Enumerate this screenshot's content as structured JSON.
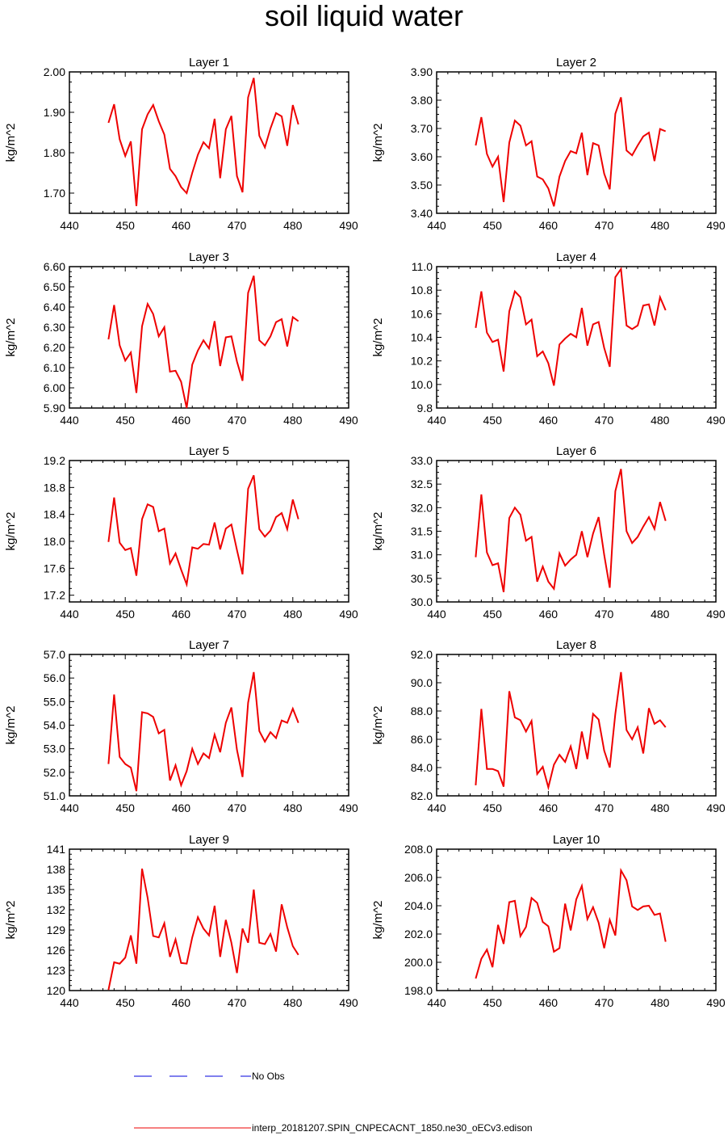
{
  "title": "soil liquid water",
  "colors": {
    "series": "#ee0000",
    "obs": "#0000dd",
    "axis": "#000000"
  },
  "legend": [
    {
      "label": "No Obs",
      "color": "#0000dd",
      "style": "dashed"
    },
    {
      "label": "interp_20181207.SPIN_CNPECACNT_1850.ne30_oECv3.edison",
      "color": "#ee0000",
      "style": "solid"
    }
  ],
  "chart_data": [
    {
      "type": "line",
      "title": "Layer 1",
      "ylabel": "kg/m^2",
      "xlim": [
        440,
        490
      ],
      "xticks": [
        440,
        450,
        460,
        470,
        480,
        490
      ],
      "ylim": [
        1.65,
        2.0
      ],
      "yticks": [
        "1.70",
        "1.80",
        "1.90",
        "2.00"
      ],
      "x": [
        447,
        448,
        449,
        450,
        451,
        452,
        453,
        454,
        455,
        456,
        457,
        458,
        459,
        460,
        461,
        462,
        463,
        464,
        465,
        466,
        467,
        468,
        469,
        470,
        471,
        472,
        473,
        474,
        475,
        476,
        477,
        478,
        479,
        480,
        481
      ],
      "series": [
        {
          "values": [
            1.874,
            1.92,
            1.833,
            1.792,
            1.828,
            1.668,
            1.858,
            1.895,
            1.918,
            1.878,
            1.845,
            1.76,
            1.742,
            1.715,
            1.7,
            1.75,
            1.795,
            1.826,
            1.811,
            1.884,
            1.737,
            1.858,
            1.891,
            1.742,
            1.702,
            1.937,
            1.985,
            1.842,
            1.813,
            1.86,
            1.898,
            1.89,
            1.817,
            1.918,
            1.87
          ]
        }
      ]
    },
    {
      "type": "line",
      "title": "Layer 2",
      "ylabel": "kg/m^2",
      "xlim": [
        440,
        490
      ],
      "xticks": [
        440,
        450,
        460,
        470,
        480,
        490
      ],
      "ylim": [
        3.4,
        3.9
      ],
      "yticks": [
        "3.40",
        "3.50",
        "3.60",
        "3.70",
        "3.80",
        "3.90"
      ],
      "x": [
        447,
        448,
        449,
        450,
        451,
        452,
        453,
        454,
        455,
        456,
        457,
        458,
        459,
        460,
        461,
        462,
        463,
        464,
        465,
        466,
        467,
        468,
        469,
        470,
        471,
        472,
        473,
        474,
        475,
        476,
        477,
        478,
        479,
        480,
        481
      ],
      "series": [
        {
          "values": [
            3.64,
            3.74,
            3.61,
            3.565,
            3.6,
            3.44,
            3.65,
            3.728,
            3.71,
            3.64,
            3.655,
            3.53,
            3.52,
            3.488,
            3.425,
            3.53,
            3.585,
            3.62,
            3.612,
            3.685,
            3.535,
            3.648,
            3.64,
            3.54,
            3.485,
            3.752,
            3.81,
            3.622,
            3.605,
            3.64,
            3.672,
            3.685,
            3.585,
            3.698,
            3.69
          ]
        }
      ]
    },
    {
      "type": "line",
      "title": "Layer 3",
      "ylabel": "kg/m^2",
      "xlim": [
        440,
        490
      ],
      "xticks": [
        440,
        450,
        460,
        470,
        480,
        490
      ],
      "ylim": [
        5.9,
        6.6
      ],
      "yticks": [
        "5.90",
        "6.00",
        "6.10",
        "6.20",
        "6.30",
        "6.40",
        "6.50",
        "6.60"
      ],
      "x": [
        447,
        448,
        449,
        450,
        451,
        452,
        453,
        454,
        455,
        456,
        457,
        458,
        459,
        460,
        461,
        462,
        463,
        464,
        465,
        466,
        467,
        468,
        469,
        470,
        471,
        472,
        473,
        474,
        475,
        476,
        477,
        478,
        479,
        480,
        481
      ],
      "series": [
        {
          "values": [
            6.24,
            6.41,
            6.21,
            6.135,
            6.175,
            5.975,
            6.305,
            6.415,
            6.365,
            6.255,
            6.3,
            6.08,
            6.085,
            6.03,
            5.9,
            6.115,
            6.185,
            6.235,
            6.195,
            6.33,
            6.108,
            6.25,
            6.255,
            6.13,
            6.035,
            6.47,
            6.555,
            6.235,
            6.21,
            6.255,
            6.325,
            6.34,
            6.205,
            6.35,
            6.33
          ]
        }
      ]
    },
    {
      "type": "line",
      "title": "Layer 4",
      "ylabel": "kg/m^2",
      "xlim": [
        440,
        490
      ],
      "xticks": [
        440,
        450,
        460,
        470,
        480,
        490
      ],
      "ylim": [
        9.8,
        11.0
      ],
      "yticks": [
        "9.8",
        "10.0",
        "10.2",
        "10.4",
        "10.6",
        "10.8",
        "11.0"
      ],
      "x": [
        447,
        448,
        449,
        450,
        451,
        452,
        453,
        454,
        455,
        456,
        457,
        458,
        459,
        460,
        461,
        462,
        463,
        464,
        465,
        466,
        467,
        468,
        469,
        470,
        471,
        472,
        473,
        474,
        475,
        476,
        477,
        478,
        479,
        480,
        481
      ],
      "series": [
        {
          "values": [
            10.48,
            10.79,
            10.44,
            10.36,
            10.38,
            10.11,
            10.62,
            10.79,
            10.74,
            10.51,
            10.55,
            10.24,
            10.28,
            10.18,
            9.99,
            10.34,
            10.39,
            10.43,
            10.4,
            10.65,
            10.33,
            10.51,
            10.53,
            10.31,
            10.15,
            10.91,
            10.98,
            10.5,
            10.47,
            10.5,
            10.67,
            10.68,
            10.5,
            10.74,
            10.63
          ]
        }
      ]
    },
    {
      "type": "line",
      "title": "Layer 5",
      "ylabel": "kg/m^2",
      "xlim": [
        440,
        490
      ],
      "xticks": [
        440,
        450,
        460,
        470,
        480,
        490
      ],
      "ylim": [
        17.1,
        19.2
      ],
      "yticks": [
        "17.2",
        "17.6",
        "18.0",
        "18.4",
        "18.8",
        "19.2"
      ],
      "x": [
        447,
        448,
        449,
        450,
        451,
        452,
        453,
        454,
        455,
        456,
        457,
        458,
        459,
        460,
        461,
        462,
        463,
        464,
        465,
        466,
        467,
        468,
        469,
        470,
        471,
        472,
        473,
        474,
        475,
        476,
        477,
        478,
        479,
        480,
        481
      ],
      "series": [
        {
          "values": [
            17.99,
            18.65,
            17.98,
            17.87,
            17.9,
            17.49,
            18.33,
            18.55,
            18.51,
            18.15,
            18.19,
            17.67,
            17.82,
            17.58,
            17.36,
            17.91,
            17.89,
            17.96,
            17.95,
            18.28,
            17.88,
            18.19,
            18.25,
            17.87,
            17.51,
            18.78,
            18.98,
            18.18,
            18.07,
            18.16,
            18.36,
            18.42,
            18.18,
            18.62,
            18.33
          ]
        }
      ]
    },
    {
      "type": "line",
      "title": "Layer 6",
      "ylabel": "kg/m^2",
      "xlim": [
        440,
        490
      ],
      "xticks": [
        440,
        450,
        460,
        470,
        480,
        490
      ],
      "ylim": [
        30.0,
        33.0
      ],
      "yticks": [
        "30.0",
        "30.5",
        "31.0",
        "31.5",
        "32.0",
        "32.5",
        "33.0"
      ],
      "x": [
        447,
        448,
        449,
        450,
        451,
        452,
        453,
        454,
        455,
        456,
        457,
        458,
        459,
        460,
        461,
        462,
        463,
        464,
        465,
        466,
        467,
        468,
        469,
        470,
        471,
        472,
        473,
        474,
        475,
        476,
        477,
        478,
        479,
        480,
        481
      ],
      "series": [
        {
          "values": [
            30.95,
            32.28,
            31.05,
            30.78,
            30.82,
            30.21,
            31.78,
            32.0,
            31.85,
            31.3,
            31.38,
            30.43,
            30.75,
            30.43,
            30.28,
            31.03,
            30.77,
            30.9,
            31.0,
            31.5,
            30.95,
            31.45,
            31.8,
            31.0,
            30.3,
            32.35,
            32.82,
            31.5,
            31.25,
            31.38,
            31.6,
            31.8,
            31.55,
            32.12,
            31.72
          ]
        }
      ]
    },
    {
      "type": "line",
      "title": "Layer 7",
      "ylabel": "kg/m^2",
      "xlim": [
        440,
        490
      ],
      "xticks": [
        440,
        450,
        460,
        470,
        480,
        490
      ],
      "ylim": [
        51.0,
        57.0
      ],
      "yticks": [
        "51.0",
        "52.0",
        "53.0",
        "54.0",
        "55.0",
        "56.0",
        "57.0"
      ],
      "x": [
        447,
        448,
        449,
        450,
        451,
        452,
        453,
        454,
        455,
        456,
        457,
        458,
        459,
        460,
        461,
        462,
        463,
        464,
        465,
        466,
        467,
        468,
        469,
        470,
        471,
        472,
        473,
        474,
        475,
        476,
        477,
        478,
        479,
        480,
        481
      ],
      "series": [
        {
          "values": [
            52.35,
            55.3,
            52.65,
            52.35,
            52.2,
            51.2,
            54.55,
            54.5,
            54.35,
            53.65,
            53.8,
            51.65,
            52.3,
            51.45,
            52.05,
            53.0,
            52.35,
            52.8,
            52.6,
            53.6,
            52.85,
            54.1,
            54.75,
            52.95,
            51.8,
            54.95,
            56.25,
            53.75,
            53.3,
            53.7,
            53.45,
            54.2,
            54.1,
            54.7,
            54.1
          ]
        }
      ]
    },
    {
      "type": "line",
      "title": "Layer 8",
      "ylabel": "kg/m^2",
      "xlim": [
        440,
        490
      ],
      "xticks": [
        440,
        450,
        460,
        470,
        480,
        490
      ],
      "ylim": [
        82.0,
        92.0
      ],
      "yticks": [
        "82.0",
        "84.0",
        "86.0",
        "88.0",
        "90.0",
        "92.0"
      ],
      "x": [
        447,
        448,
        449,
        450,
        451,
        452,
        453,
        454,
        455,
        456,
        457,
        458,
        459,
        460,
        461,
        462,
        463,
        464,
        465,
        466,
        467,
        468,
        469,
        470,
        471,
        472,
        473,
        474,
        475,
        476,
        477,
        478,
        479,
        480,
        481
      ],
      "series": [
        {
          "values": [
            82.75,
            88.15,
            83.9,
            83.9,
            83.75,
            82.65,
            89.4,
            87.55,
            87.35,
            86.55,
            87.3,
            83.55,
            84.05,
            82.6,
            84.2,
            84.9,
            84.4,
            85.5,
            83.9,
            86.55,
            84.6,
            87.8,
            87.4,
            85.2,
            84.0,
            87.8,
            90.75,
            86.65,
            86.0,
            86.85,
            85.0,
            88.2,
            87.1,
            87.35,
            86.85
          ]
        }
      ]
    },
    {
      "type": "line",
      "title": "Layer 9",
      "ylabel": "kg/m^2",
      "xlim": [
        440,
        490
      ],
      "xticks": [
        440,
        450,
        460,
        470,
        480,
        490
      ],
      "ylim": [
        120,
        141
      ],
      "yticks": [
        "120",
        "123",
        "126",
        "129",
        "132",
        "135",
        "138",
        "141"
      ],
      "x": [
        447,
        448,
        449,
        450,
        451,
        452,
        453,
        454,
        455,
        456,
        457,
        458,
        459,
        460,
        461,
        462,
        463,
        464,
        465,
        466,
        467,
        468,
        469,
        470,
        471,
        472,
        473,
        474,
        475,
        476,
        477,
        478,
        479,
        480,
        481
      ],
      "series": [
        {
          "values": [
            120.1,
            124.2,
            124.0,
            124.9,
            128.2,
            124.0,
            138.1,
            133.8,
            128.1,
            127.9,
            130.0,
            125.0,
            127.6,
            124.1,
            124.0,
            127.9,
            130.9,
            129.2,
            128.2,
            132.6,
            125.0,
            130.5,
            127.1,
            122.6,
            129.2,
            127.1,
            135.0,
            127.1,
            126.9,
            128.4,
            125.8,
            132.8,
            129.4,
            126.6,
            125.3
          ]
        }
      ]
    },
    {
      "type": "line",
      "title": "Layer 10",
      "ylabel": "kg/m^2",
      "xlim": [
        440,
        490
      ],
      "xticks": [
        440,
        450,
        460,
        470,
        480,
        490
      ],
      "ylim": [
        198.0,
        208.0
      ],
      "yticks": [
        "198.0",
        "200.0",
        "202.0",
        "204.0",
        "206.0",
        "208.0"
      ],
      "x": [
        447,
        448,
        449,
        450,
        451,
        452,
        453,
        454,
        455,
        456,
        457,
        458,
        459,
        460,
        461,
        462,
        463,
        464,
        465,
        466,
        467,
        468,
        469,
        470,
        471,
        472,
        473,
        474,
        475,
        476,
        477,
        478,
        479,
        480,
        481
      ],
      "series": [
        {
          "values": [
            198.85,
            200.25,
            200.9,
            199.65,
            202.65,
            201.3,
            204.25,
            204.35,
            201.85,
            202.5,
            204.55,
            204.2,
            202.85,
            202.55,
            200.75,
            201.0,
            204.15,
            202.25,
            204.45,
            205.4,
            203.05,
            203.9,
            202.8,
            201.0,
            203.0,
            201.9,
            206.5,
            205.8,
            203.95,
            203.7,
            203.95,
            204.0,
            203.35,
            203.45,
            201.45
          ]
        }
      ]
    }
  ]
}
